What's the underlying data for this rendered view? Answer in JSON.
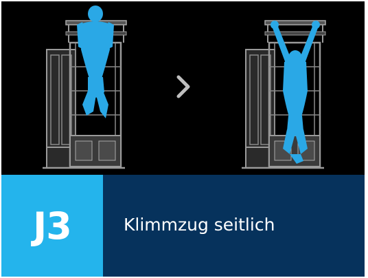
{
  "exercise": {
    "code": "J3",
    "title": "Klimmzug seitlich"
  },
  "illustration": {
    "start_pose": "pull-up-top-position",
    "end_pose": "hanging-wide-grip-position",
    "arrow_icon": "chevron-right-icon"
  },
  "colors": {
    "background": "#000000",
    "figure": "#2aa8e6",
    "apparatus": "#8c8c8c",
    "code_box": "#24b4ec",
    "title_box": "#06325c",
    "text": "#ffffff"
  }
}
